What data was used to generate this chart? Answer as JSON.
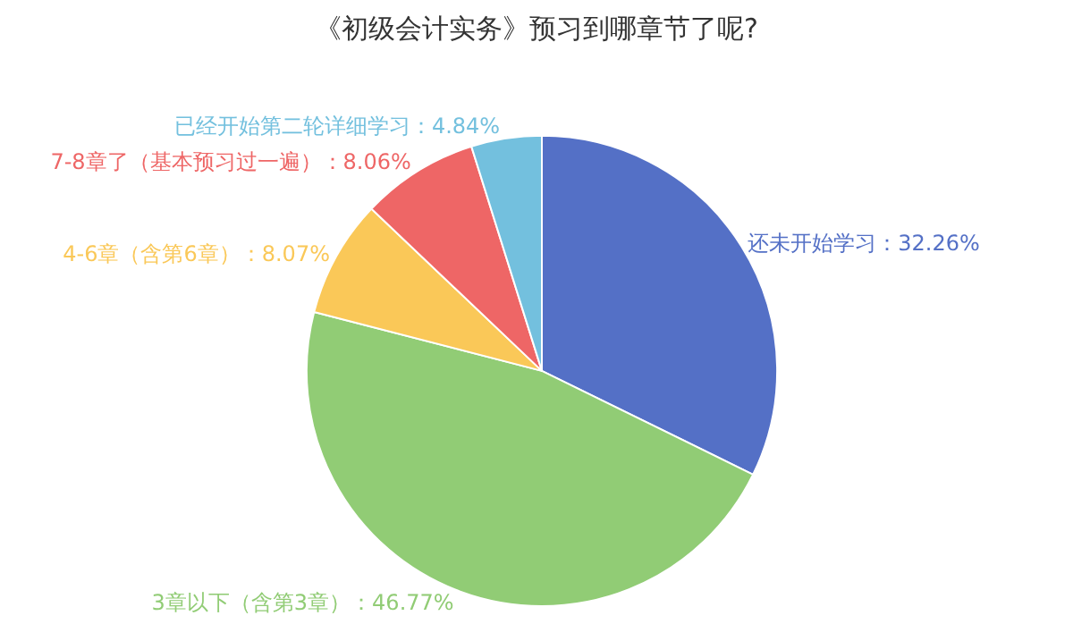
{
  "chart_data": {
    "type": "pie",
    "title": "《初级会计实务》预习到哪章节了呢?",
    "categories": [
      "还未开始学习",
      "3章以下（含第3章）",
      "4-6章（含第6章）",
      "7-8章了（基本预习过一遍）",
      "已经开始第二轮详细学习"
    ],
    "values": [
      32.26,
      46.77,
      8.07,
      8.06,
      4.84
    ],
    "value_labels": [
      "32.26%",
      "46.77%",
      "8.07%",
      "8.06%",
      "4.84%"
    ],
    "colors": [
      "#5470c6",
      "#91cc75",
      "#fac858",
      "#ee6666",
      "#73c0de"
    ],
    "legend": false
  }
}
